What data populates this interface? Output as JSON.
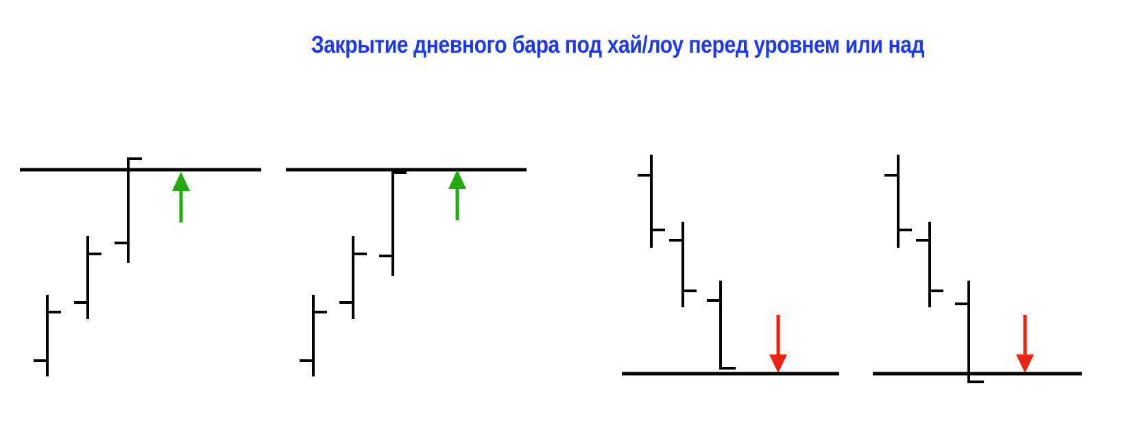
{
  "title": "Закрытие дневного бара под хай/лоу перед уровнем или над",
  "colors": {
    "title": "#1d38f2",
    "bars": "#000000",
    "arrow_up": "#22aa11",
    "arrow_down": "#ee2211"
  },
  "panels": [
    {
      "direction": "up",
      "arrow_icon": "arrow-up-icon"
    },
    {
      "direction": "up",
      "arrow_icon": "arrow-up-icon"
    },
    {
      "direction": "down",
      "arrow_icon": "arrow-down-icon"
    },
    {
      "direction": "down",
      "arrow_icon": "arrow-down-icon"
    }
  ]
}
